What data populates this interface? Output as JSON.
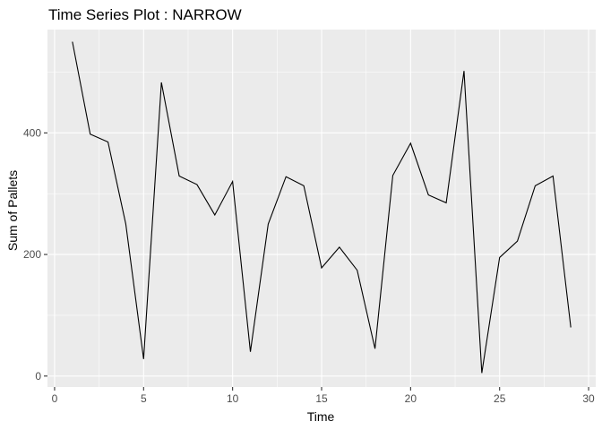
{
  "chart_data": {
    "type": "line",
    "title": "Time Series Plot : NARROW",
    "xlabel": "Time",
    "ylabel": "Sum of Pallets",
    "xlim": [
      -0.4,
      30.4
    ],
    "ylim": [
      -18,
      570
    ],
    "x_ticks": [
      0,
      5,
      10,
      15,
      20,
      25,
      30
    ],
    "x_tick_labels": [
      "0",
      "5",
      "10",
      "15",
      "20",
      "25",
      "30"
    ],
    "y_ticks": [
      0,
      200,
      400
    ],
    "y_tick_labels": [
      "0",
      "200",
      "400"
    ],
    "grid": true,
    "panel_background": "#ebebeb",
    "grid_color": "#ffffff",
    "line_color": "#000000",
    "series": [
      {
        "x": [
          1,
          2,
          3,
          4,
          5,
          6,
          7,
          8,
          9,
          10,
          11,
          12,
          13,
          14,
          15,
          16,
          17,
          18,
          19,
          20,
          21,
          22,
          23,
          24,
          25,
          26,
          27,
          28,
          29
        ],
        "values": [
          550,
          398,
          385,
          250,
          28,
          483,
          329,
          315,
          265,
          320,
          40,
          250,
          328,
          313,
          178,
          212,
          174,
          45,
          330,
          383,
          298,
          285,
          502,
          5,
          195,
          222,
          313,
          329,
          80
        ]
      }
    ]
  }
}
